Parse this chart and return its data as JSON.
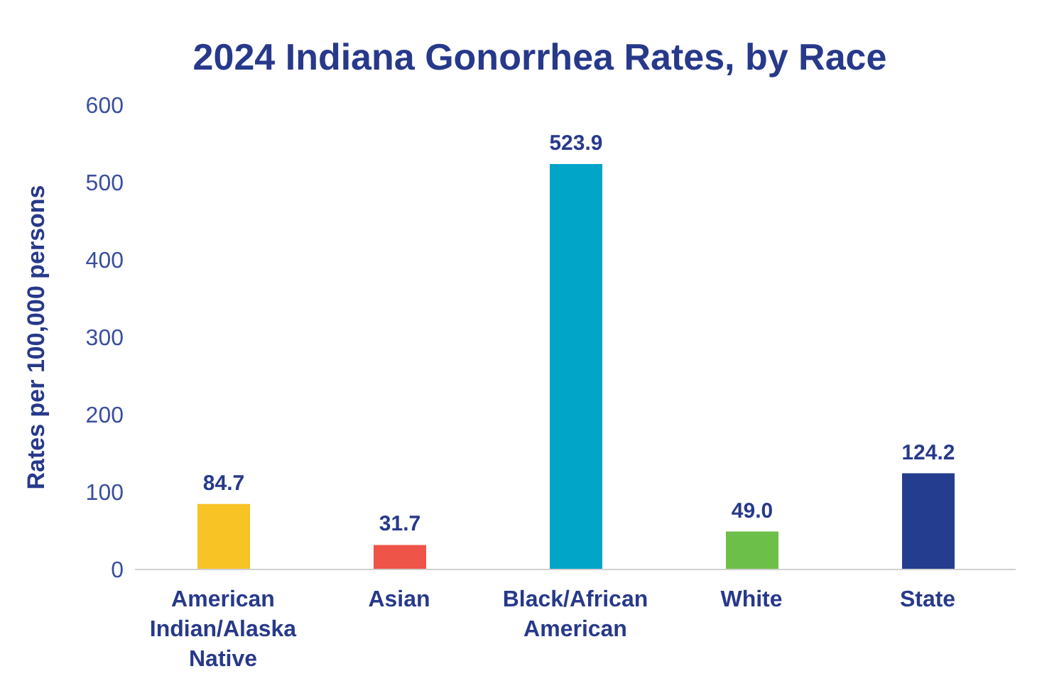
{
  "chart_data": {
    "type": "bar",
    "title": "2024 Indiana Gonorrhea Rates, by Race",
    "ylabel": "Rates per 100,000 persons",
    "categories": [
      "American Indian/Alaska Native",
      "Asian",
      "Black/African American",
      "White",
      "State"
    ],
    "values": [
      84.7,
      31.7,
      523.9,
      49.0,
      124.2
    ],
    "colors": [
      "#f7c325",
      "#ef5448",
      "#00a5c8",
      "#6cc04a",
      "#253d8f"
    ],
    "value_labels": [
      "84.7",
      "31.7",
      "523.9",
      "49.0",
      "124.2"
    ],
    "ylim": [
      0,
      600
    ],
    "yticks": [
      0,
      100,
      200,
      300,
      400,
      500,
      600
    ],
    "grid": false
  }
}
